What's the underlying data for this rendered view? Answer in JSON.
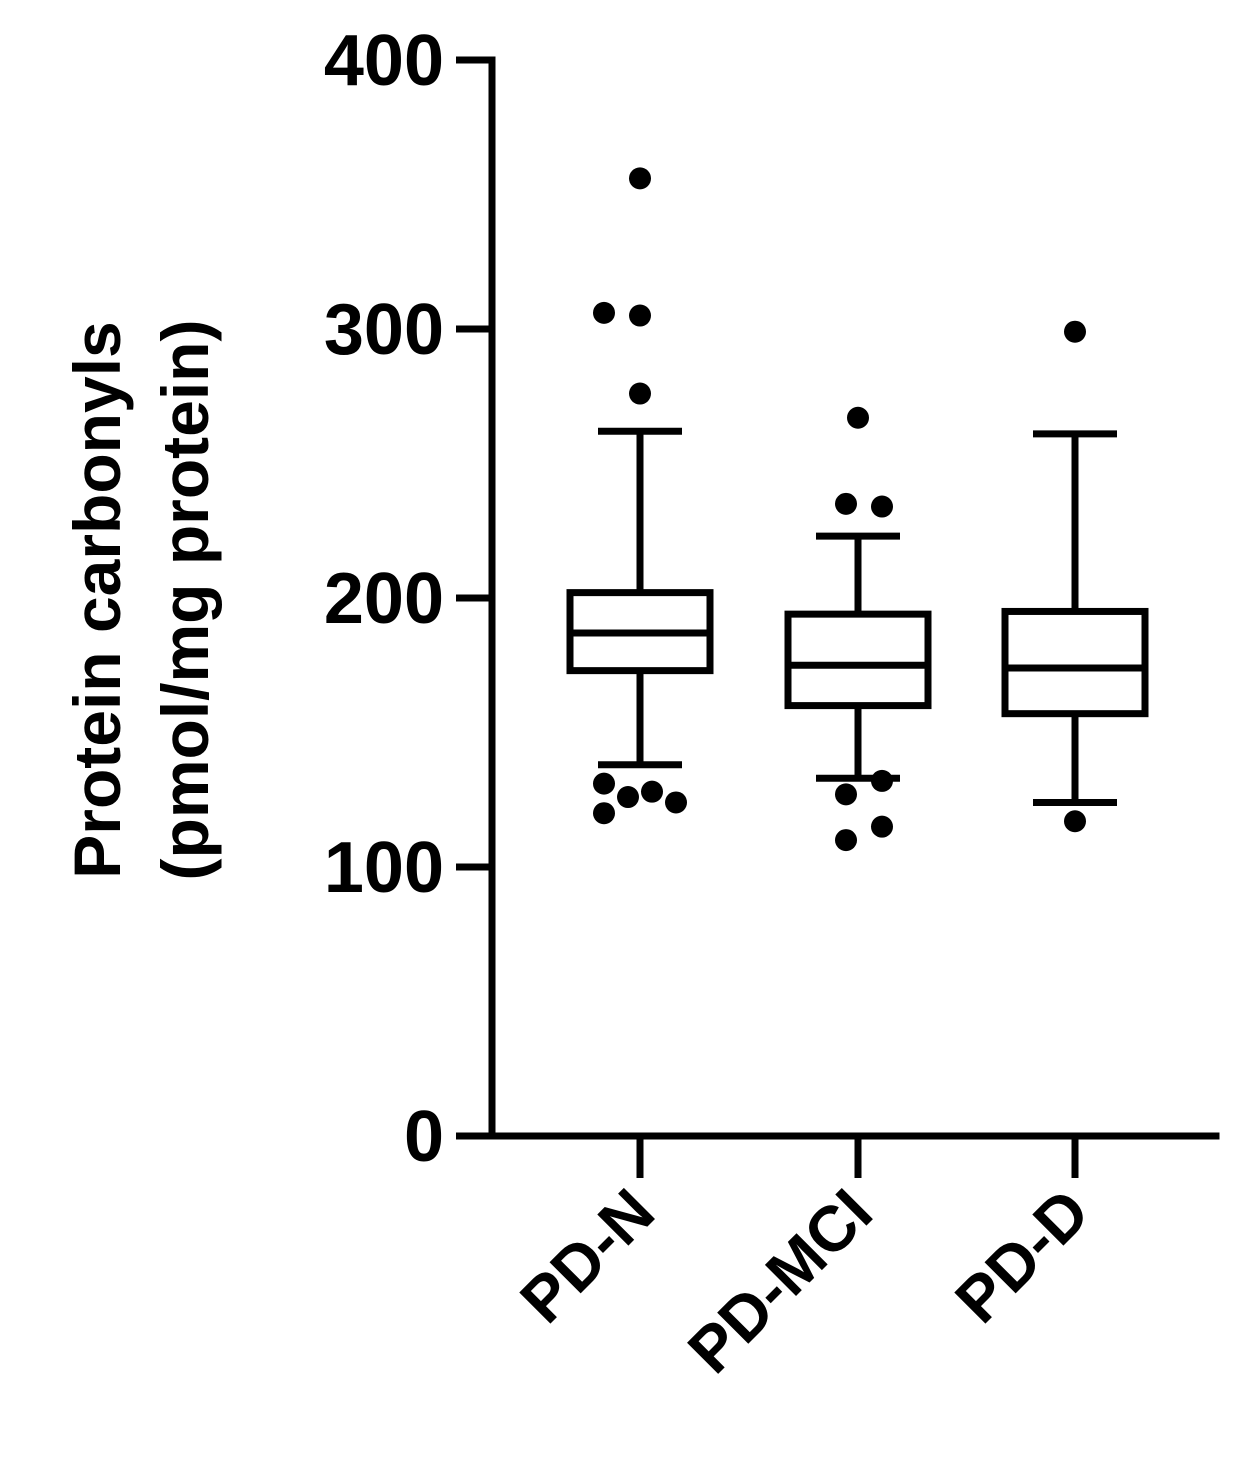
{
  "chart_data": {
    "type": "box",
    "ylabel_lines": [
      "Protein carbonyls",
      "(pmol/mg protein)"
    ],
    "ylim": [
      0,
      400
    ],
    "yticks": [
      0,
      100,
      200,
      300,
      400
    ],
    "categories": [
      "PD-N",
      "PD-MCI",
      "PD-D"
    ],
    "boxes": [
      {
        "name": "PD-N",
        "whisker_low": 138,
        "q1": 173,
        "median": 187,
        "q3": 202,
        "whisker_high": 262,
        "outliers": [
          {
            "x": -0.3,
            "y": 120
          },
          {
            "x": -0.1,
            "y": 126
          },
          {
            "x": 0.3,
            "y": 124
          },
          {
            "x": -0.3,
            "y": 131
          },
          {
            "x": 0.1,
            "y": 128
          },
          {
            "x": 0.0,
            "y": 276
          },
          {
            "x": -0.3,
            "y": 306
          },
          {
            "x": 0.0,
            "y": 305
          },
          {
            "x": 0.0,
            "y": 356
          }
        ]
      },
      {
        "name": "PD-MCI",
        "whisker_low": 133,
        "q1": 160,
        "median": 175,
        "q3": 194,
        "whisker_high": 223,
        "outliers": [
          {
            "x": -0.1,
            "y": 110
          },
          {
            "x": 0.2,
            "y": 115
          },
          {
            "x": -0.1,
            "y": 127
          },
          {
            "x": 0.2,
            "y": 132
          },
          {
            "x": -0.1,
            "y": 235
          },
          {
            "x": 0.2,
            "y": 234
          },
          {
            "x": 0.0,
            "y": 267
          }
        ]
      },
      {
        "name": "PD-D",
        "whisker_low": 124,
        "q1": 157,
        "median": 174,
        "q3": 195,
        "whisker_high": 261,
        "outliers": [
          {
            "x": 0.0,
            "y": 117
          },
          {
            "x": 0.0,
            "y": 299
          }
        ]
      }
    ]
  }
}
